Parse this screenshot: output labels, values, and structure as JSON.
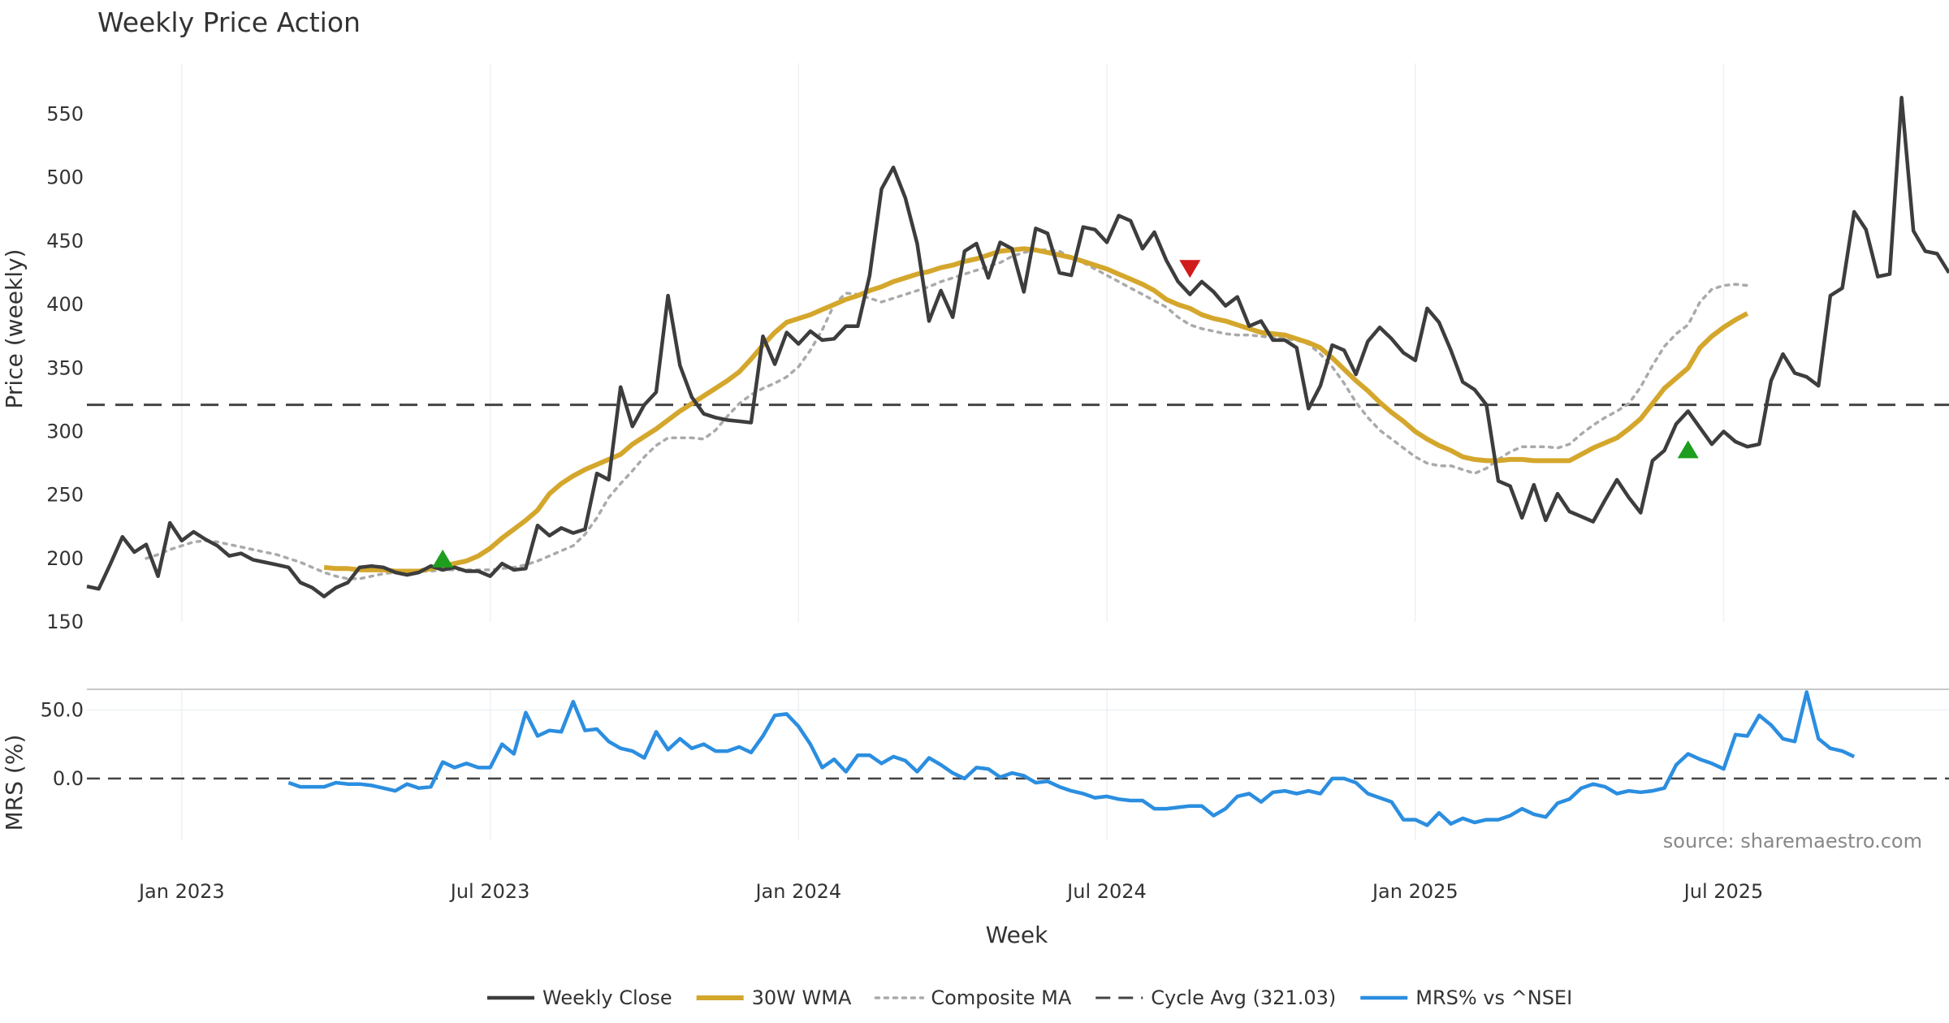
{
  "chart_data": {
    "type": "line",
    "title": "Weekly Price Action",
    "xlabel": "Week",
    "source_note": "source: sharemaestro.com",
    "x_ticks": [
      "Jan 2023",
      "Jul 2023",
      "Jan 2024",
      "Jul 2024",
      "Jan 2025",
      "Jul 2025"
    ],
    "x_tick_positions": [
      1,
      27,
      53,
      79,
      105,
      131
    ],
    "x_range": [
      -7,
      150
    ],
    "price_panel": {
      "ylabel": "Price (weekly)",
      "ylim": [
        150,
        590
      ],
      "y_ticks": [
        150,
        200,
        250,
        300,
        350,
        400,
        450,
        500,
        550
      ],
      "cycle_avg": 321.03,
      "signals": [
        {
          "x": 23,
          "y": 200,
          "type": "buy"
        },
        {
          "x": 86,
          "y": 428,
          "type": "sell"
        },
        {
          "x": 128,
          "y": 286,
          "type": "buy"
        }
      ]
    },
    "mrs_panel": {
      "ylabel": "MRS (%)",
      "ylim": [
        -45,
        65
      ],
      "y_ticks": [
        0,
        50
      ],
      "y_tick_labels": [
        "0.0",
        "50.0"
      ],
      "zero_line": 0
    },
    "series": [
      {
        "name": "Weekly Close",
        "color": "#3d3d3d",
        "panel": "price",
        "style": "solid",
        "x_start": -7,
        "values": [
          178,
          176,
          196,
          217,
          205,
          211,
          186,
          228,
          214,
          221,
          215,
          210,
          202,
          204,
          199,
          197,
          195,
          193,
          181,
          177,
          170,
          177,
          181,
          193,
          194,
          193,
          189,
          187,
          189,
          194,
          191,
          193,
          190,
          190,
          186,
          196,
          191,
          192,
          226,
          218,
          224,
          220,
          223,
          267,
          262,
          335,
          304,
          321,
          331,
          407,
          352,
          327,
          314,
          311,
          309,
          308,
          307,
          375,
          353,
          378,
          369,
          379,
          372,
          373,
          383,
          383,
          423,
          491,
          508,
          484,
          448,
          387,
          411,
          390,
          442,
          448,
          421,
          449,
          444,
          410,
          460,
          456,
          425,
          423,
          461,
          459,
          449,
          470,
          466,
          444,
          457,
          435,
          418,
          408,
          418,
          410,
          399,
          406,
          383,
          387,
          372,
          372,
          366,
          318,
          336,
          368,
          364,
          345,
          371,
          382,
          373,
          362,
          356,
          397,
          386,
          364,
          339,
          333,
          321,
          261,
          257,
          232,
          258,
          230,
          251,
          237,
          233,
          229,
          246,
          262,
          248,
          236,
          277,
          285,
          306,
          316,
          303,
          290,
          300,
          292,
          288,
          290,
          340,
          361,
          346,
          343,
          336,
          407,
          413,
          473,
          459,
          422,
          424,
          563,
          458,
          442,
          440,
          425
        ]
      },
      {
        "name": "30W WMA",
        "color": "#d4a72c",
        "panel": "price",
        "style": "solid",
        "x_start": 13,
        "values": [
          193,
          192,
          192,
          191,
          191,
          191,
          190,
          190,
          190,
          192,
          194,
          196,
          198,
          202,
          208,
          216,
          223,
          230,
          238,
          251,
          259,
          265,
          270,
          274,
          278,
          282,
          290,
          296,
          302,
          309,
          316,
          322,
          328,
          334,
          340,
          347,
          357,
          368,
          378,
          386,
          389,
          392,
          396,
          400,
          404,
          407,
          411,
          414,
          418,
          421,
          424,
          426,
          429,
          431,
          434,
          436,
          439,
          442,
          443,
          444,
          443,
          441,
          439,
          437,
          434,
          431,
          428,
          424,
          420,
          416,
          411,
          404,
          400,
          397,
          392,
          389,
          387,
          384,
          381,
          378,
          377,
          376,
          373,
          370,
          366,
          358,
          349,
          340,
          332,
          323,
          315,
          308,
          300,
          294,
          289,
          285,
          280,
          278,
          277,
          277,
          278,
          278,
          277,
          277,
          277,
          277,
          282,
          287,
          291,
          295,
          302,
          310,
          322,
          334,
          342,
          350,
          366,
          375,
          382,
          388,
          393
        ]
      },
      {
        "name": "Composite MA",
        "color": "#aaaaaa",
        "panel": "price",
        "style": "dotted",
        "x_start": -2,
        "values": [
          200,
          203,
          207,
          210,
          213,
          214,
          213,
          211,
          209,
          207,
          205,
          203,
          200,
          197,
          193,
          189,
          186,
          184,
          184,
          186,
          188,
          189,
          190,
          190,
          190,
          191,
          191,
          191,
          191,
          191,
          192,
          193,
          195,
          198,
          202,
          206,
          210,
          219,
          232,
          248,
          259,
          269,
          280,
          289,
          295,
          295,
          295,
          294,
          301,
          312,
          322,
          329,
          334,
          338,
          343,
          351,
          364,
          380,
          400,
          409,
          408,
          405,
          402,
          405,
          408,
          411,
          414,
          418,
          421,
          424,
          427,
          430,
          433,
          438,
          441,
          443,
          443,
          442,
          437,
          433,
          428,
          423,
          418,
          413,
          408,
          403,
          398,
          390,
          384,
          381,
          379,
          377,
          376,
          376,
          375,
          374,
          373,
          372,
          369,
          361,
          351,
          338,
          323,
          311,
          301,
          294,
          287,
          280,
          275,
          273,
          273,
          270,
          267,
          271,
          278,
          284,
          288,
          288,
          288,
          287,
          290,
          298,
          305,
          311,
          316,
          322,
          335,
          352,
          367,
          377,
          384,
          402,
          412,
          415,
          416,
          415
        ]
      },
      {
        "name": "Cycle Avg (321.03)",
        "color": "#444444",
        "panel": "price",
        "style": "dashed",
        "constant": 321.03
      },
      {
        "name": "MRS% vs ^NSEI",
        "color": "#2b8ee0",
        "panel": "mrs",
        "style": "solid",
        "x_start": 10,
        "values": [
          -3,
          -6,
          -6,
          -6,
          -3,
          -4,
          -4,
          -5,
          -7,
          -9,
          -4,
          -7,
          -6,
          12,
          8,
          11,
          8,
          8,
          25,
          18,
          48,
          31,
          35,
          34,
          56,
          35,
          36,
          27,
          22,
          20,
          15,
          34,
          21,
          29,
          22,
          25,
          20,
          20,
          23,
          19,
          31,
          46,
          47,
          38,
          25,
          8,
          14,
          5,
          17,
          17,
          11,
          16,
          13,
          5,
          15,
          10,
          4,
          0,
          8,
          7,
          1,
          4,
          2,
          -3,
          -2,
          -6,
          -9,
          -11,
          -14,
          -13,
          -15,
          -16,
          -16,
          -22,
          -22,
          -21,
          -20,
          -20,
          -27,
          -22,
          -13,
          -11,
          -17,
          -10,
          -9,
          -11,
          -9,
          -11,
          0,
          0,
          -3,
          -11,
          -14,
          -17,
          -30,
          -30,
          -34,
          -25,
          -33,
          -29,
          -32,
          -30,
          -30,
          -27,
          -22,
          -26,
          -28,
          -18,
          -15,
          -7,
          -4,
          -6,
          -11,
          -9,
          -10,
          -9,
          -7,
          10,
          18,
          14,
          11,
          7,
          32,
          31,
          46,
          39,
          29,
          27,
          63,
          29,
          22,
          20,
          16
        ]
      }
    ],
    "legend": {
      "placement": "bottom"
    }
  }
}
